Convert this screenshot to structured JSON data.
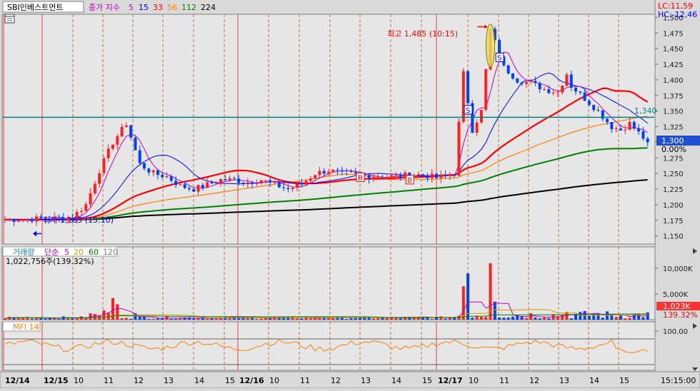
{
  "header": {
    "stock_name": "SBI인베스트먼트",
    "ma_label": "종가 지수",
    "ma_periods": [
      "5",
      "15",
      "33",
      "56",
      "112",
      "224"
    ],
    "ma_colors": [
      "#c000c0",
      "#0000ff",
      "#ff0000",
      "#ff8000",
      "#008000",
      "#000000"
    ]
  },
  "right_top": {
    "lc": "LC:11,59",
    "hc": "HC:-12,46"
  },
  "price_panel": {
    "high_annotation": "최고 1,485 (10:15)",
    "low_annotation": "최저 1,165 (15:10)",
    "hline_label": "1,340",
    "current_price": "1,300",
    "current_change": "0.00%",
    "y_ticks": [
      "1,500",
      "1,475",
      "1,450",
      "1,425",
      "1,400",
      "1,375",
      "1,350",
      "1,325",
      "1,300",
      "1,275",
      "1,250",
      "1,225",
      "1,200",
      "1,175",
      "1,150"
    ],
    "signal_s": "S",
    "signal_b": "B",
    "bear_color": "#0040ff",
    "bull_color": "#ff2020"
  },
  "volume_panel": {
    "title": "거래량",
    "ma_label": "단순",
    "ma_periods": [
      "5",
      "20",
      "60",
      "120"
    ],
    "ma_colors": [
      "#c000c0",
      "#d0a000",
      "#008000",
      "#808080"
    ],
    "volume_text": "1,022,756주(139.32%)",
    "y_ticks": [
      "10,000K",
      "5,000K"
    ],
    "current_volume": "1,023K",
    "current_percent": "139.32%"
  },
  "mfi_panel": {
    "title": "MFI 14",
    "y_ticks": [
      "100.00"
    ],
    "color": "#ff8000"
  },
  "x_axis": {
    "labels": [
      "12/14",
      "12/15",
      "10",
      "11",
      "12",
      "13",
      "14",
      "15",
      "12/16",
      "10",
      "11",
      "12",
      "13",
      "14",
      "15",
      "12/17",
      "10",
      "11",
      "12",
      "13",
      "14",
      "15"
    ],
    "time_readout": "15:15:00"
  },
  "chart_data": {
    "type": "candlestick",
    "title": "",
    "price_ylim": [
      1137,
      1505
    ],
    "high": {
      "value": 1485,
      "time": "10:15"
    },
    "low": {
      "value": 1165,
      "time": "15:10"
    },
    "horizontal_line": 1340,
    "last_price": 1300,
    "sessions": [
      "12/14",
      "12/15",
      "12/16",
      "12/17"
    ],
    "price_path": [
      [
        0,
        1176
      ],
      [
        5,
        1177
      ],
      [
        12,
        1178
      ],
      [
        15,
        1180
      ],
      [
        18,
        1200
      ],
      [
        21,
        1255
      ],
      [
        24,
        1300
      ],
      [
        27,
        1330
      ],
      [
        30,
        1265
      ],
      [
        33,
        1250
      ],
      [
        36,
        1245
      ],
      [
        39,
        1230
      ],
      [
        42,
        1225
      ],
      [
        45,
        1232
      ],
      [
        48,
        1240
      ],
      [
        51,
        1240
      ],
      [
        54,
        1236
      ],
      [
        57,
        1240
      ],
      [
        60,
        1232
      ],
      [
        63,
        1225
      ],
      [
        66,
        1233
      ],
      [
        69,
        1250
      ],
      [
        72,
        1255
      ],
      [
        75,
        1250
      ],
      [
        78,
        1248
      ],
      [
        81,
        1246
      ],
      [
        84,
        1246
      ],
      [
        87,
        1245
      ],
      [
        90,
        1248
      ],
      [
        93,
        1248
      ],
      [
        96,
        1243
      ],
      [
        98,
        1246
      ],
      [
        100,
        1250
      ],
      [
        102,
        1410
      ],
      [
        104,
        1320
      ],
      [
        106,
        1350
      ],
      [
        108,
        1480
      ],
      [
        109,
        1460
      ],
      [
        111,
        1420
      ],
      [
        114,
        1400
      ],
      [
        117,
        1395
      ],
      [
        120,
        1385
      ],
      [
        123,
        1380
      ],
      [
        125,
        1410
      ],
      [
        126,
        1390
      ],
      [
        129,
        1370
      ],
      [
        132,
        1350
      ],
      [
        135,
        1325
      ],
      [
        137,
        1320
      ],
      [
        139,
        1330
      ],
      [
        141,
        1315
      ],
      [
        143,
        1300
      ]
    ],
    "volume_spikes": [
      [
        22,
        1800
      ],
      [
        24,
        4200
      ],
      [
        25,
        3000
      ],
      [
        102,
        6500
      ],
      [
        103,
        9000
      ],
      [
        108,
        11000
      ],
      [
        109,
        3500
      ],
      [
        125,
        1500
      ]
    ],
    "volume_ylim": [
      0,
      12500
    ]
  }
}
